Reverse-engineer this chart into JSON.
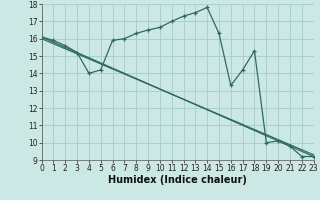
{
  "title": "",
  "xlabel": "Humidex (Indice chaleur)",
  "bg_color": "#cce8e4",
  "grid_color": "#aacfca",
  "line_color": "#2e6b5e",
  "ylim": [
    9,
    18
  ],
  "xlim": [
    0,
    23
  ],
  "yticks": [
    9,
    10,
    11,
    12,
    13,
    14,
    15,
    16,
    17,
    18
  ],
  "xticks": [
    0,
    1,
    2,
    3,
    4,
    5,
    6,
    7,
    8,
    9,
    10,
    11,
    12,
    13,
    14,
    15,
    16,
    17,
    18,
    19,
    20,
    21,
    22,
    23
  ],
  "line1_x": [
    0,
    1,
    2,
    3,
    4,
    5,
    6,
    7,
    8,
    9,
    10,
    11,
    12,
    13,
    14,
    15,
    16,
    17,
    18,
    19,
    20,
    21,
    22,
    23
  ],
  "line1_y": [
    16.1,
    15.9,
    15.6,
    15.2,
    14.0,
    14.2,
    15.9,
    16.0,
    16.3,
    16.5,
    16.65,
    17.0,
    17.3,
    17.5,
    17.8,
    16.3,
    13.3,
    14.2,
    15.3,
    10.0,
    10.1,
    9.8,
    9.2,
    9.2
  ],
  "line2_x": [
    0,
    23
  ],
  "line2_y": [
    16.1,
    9.2
  ],
  "line3_x": [
    0,
    23
  ],
  "line3_y": [
    16.0,
    9.3
  ],
  "tick_fontsize": 5.5,
  "xlabel_fontsize": 7
}
